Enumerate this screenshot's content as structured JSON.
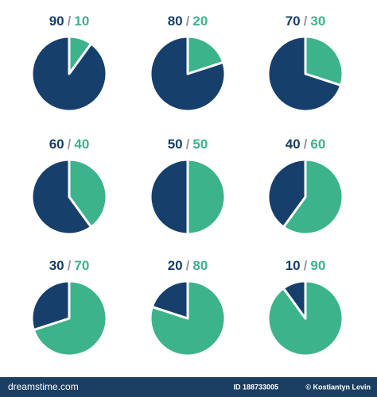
{
  "chart_data": [
    {
      "type": "pie",
      "values": [
        90,
        10
      ],
      "colors": [
        "#173f6b",
        "#3db38b"
      ],
      "separator": "/"
    },
    {
      "type": "pie",
      "values": [
        80,
        20
      ],
      "colors": [
        "#173f6b",
        "#3db38b"
      ],
      "separator": "/"
    },
    {
      "type": "pie",
      "values": [
        70,
        30
      ],
      "colors": [
        "#173f6b",
        "#3db38b"
      ],
      "separator": "/"
    },
    {
      "type": "pie",
      "values": [
        60,
        40
      ],
      "colors": [
        "#173f6b",
        "#3db38b"
      ],
      "separator": "/"
    },
    {
      "type": "pie",
      "values": [
        50,
        50
      ],
      "colors": [
        "#173f6b",
        "#3db38b"
      ],
      "separator": "/"
    },
    {
      "type": "pie",
      "values": [
        40,
        60
      ],
      "colors": [
        "#173f6b",
        "#3db38b"
      ],
      "separator": "/"
    },
    {
      "type": "pie",
      "values": [
        30,
        70
      ],
      "colors": [
        "#173f6b",
        "#3db38b"
      ],
      "separator": "/"
    },
    {
      "type": "pie",
      "values": [
        20,
        80
      ],
      "colors": [
        "#173f6b",
        "#3db38b"
      ],
      "separator": "/"
    },
    {
      "type": "pie",
      "values": [
        10,
        90
      ],
      "colors": [
        "#173f6b",
        "#3db38b"
      ],
      "separator": "/"
    }
  ],
  "footer": {
    "brand": "dreamstime.com",
    "id": "ID 188733005",
    "author": "© Kostiantyn Levin"
  }
}
